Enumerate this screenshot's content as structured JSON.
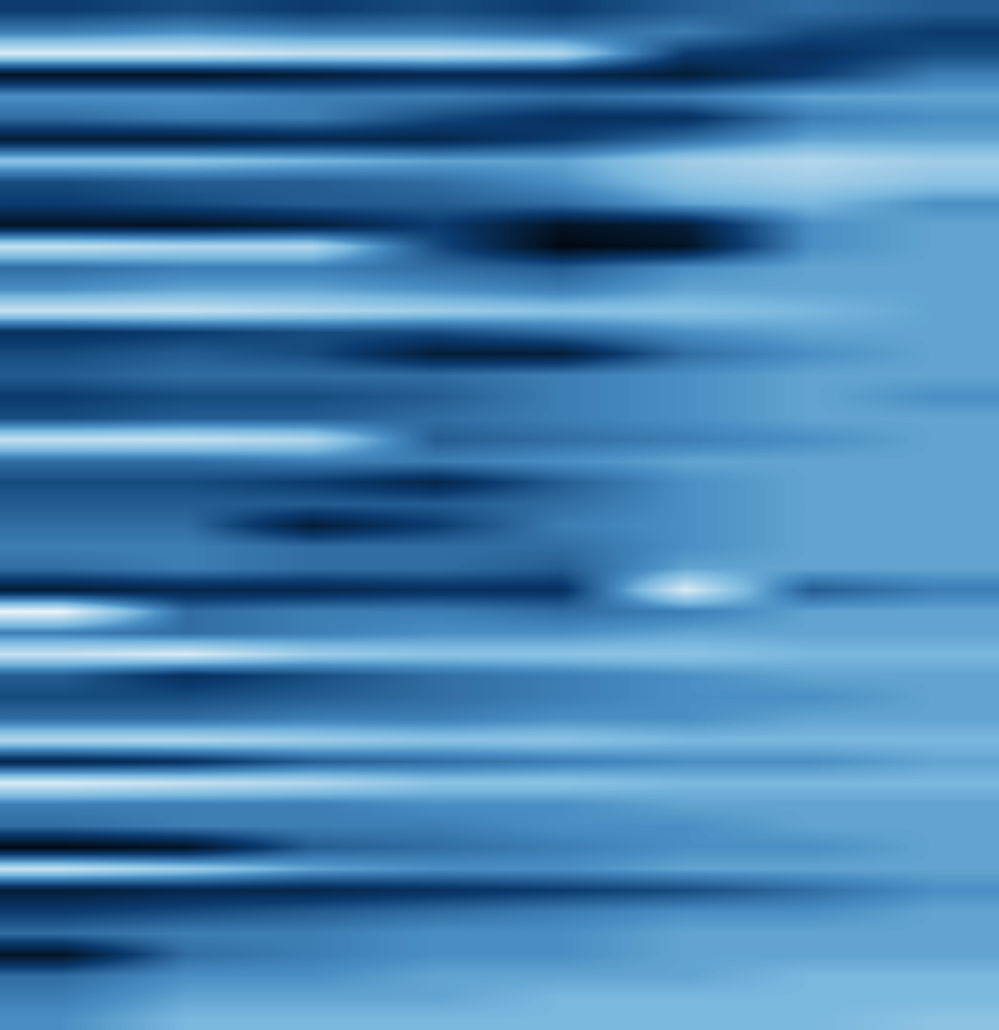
{
  "chart_data": {
    "type": "heatmap",
    "tick_labels": false,
    "color_range": [
      0,
      1
    ],
    "cells": [
      [
        0.3,
        0.35,
        0.3,
        0.35,
        0.3,
        0.4,
        0.45,
        0.4
      ],
      [
        0.5,
        0.55,
        0.5,
        0.5,
        0.45,
        0.5,
        0.35,
        0.3
      ],
      [
        0.9,
        0.9,
        0.85,
        0.85,
        0.8,
        0.3,
        0.25,
        0.35
      ],
      [
        0.1,
        0.1,
        0.15,
        0.2,
        0.2,
        0.15,
        0.3,
        0.5
      ],
      [
        0.55,
        0.55,
        0.5,
        0.5,
        0.45,
        0.5,
        0.6,
        0.6
      ],
      [
        0.45,
        0.5,
        0.5,
        0.35,
        0.25,
        0.25,
        0.5,
        0.55
      ],
      [
        0.15,
        0.15,
        0.2,
        0.2,
        0.3,
        0.45,
        0.6,
        0.6
      ],
      [
        0.7,
        0.7,
        0.65,
        0.6,
        0.6,
        0.75,
        0.8,
        0.75
      ],
      [
        0.35,
        0.4,
        0.4,
        0.45,
        0.55,
        0.7,
        0.75,
        0.7
      ],
      [
        0.3,
        0.35,
        0.4,
        0.4,
        0.45,
        0.6,
        0.65,
        0.55
      ],
      [
        0.1,
        0.1,
        0.15,
        0.3,
        0.1,
        0.15,
        0.55,
        0.6
      ],
      [
        0.85,
        0.8,
        0.8,
        0.35,
        0.05,
        0.1,
        0.55,
        0.6
      ],
      [
        0.45,
        0.5,
        0.5,
        0.45,
        0.4,
        0.55,
        0.6,
        0.6
      ],
      [
        0.55,
        0.6,
        0.6,
        0.55,
        0.5,
        0.6,
        0.6,
        0.6
      ],
      [
        0.85,
        0.85,
        0.8,
        0.75,
        0.7,
        0.7,
        0.65,
        0.6
      ],
      [
        0.25,
        0.3,
        0.35,
        0.35,
        0.45,
        0.55,
        0.6,
        0.6
      ],
      [
        0.35,
        0.4,
        0.35,
        0.15,
        0.15,
        0.45,
        0.55,
        0.6
      ],
      [
        0.4,
        0.45,
        0.45,
        0.45,
        0.5,
        0.55,
        0.6,
        0.6
      ],
      [
        0.3,
        0.35,
        0.35,
        0.4,
        0.5,
        0.55,
        0.6,
        0.55
      ],
      [
        0.35,
        0.4,
        0.4,
        0.45,
        0.5,
        0.55,
        0.6,
        0.6
      ],
      [
        0.85,
        0.85,
        0.8,
        0.4,
        0.45,
        0.5,
        0.55,
        0.6
      ],
      [
        0.45,
        0.45,
        0.5,
        0.5,
        0.55,
        0.6,
        0.6,
        0.6
      ],
      [
        0.35,
        0.35,
        0.3,
        0.2,
        0.4,
        0.55,
        0.6,
        0.6
      ],
      [
        0.4,
        0.4,
        0.4,
        0.4,
        0.45,
        0.55,
        0.6,
        0.6
      ],
      [
        0.45,
        0.45,
        0.15,
        0.3,
        0.5,
        0.55,
        0.6,
        0.6
      ],
      [
        0.5,
        0.5,
        0.45,
        0.45,
        0.45,
        0.55,
        0.6,
        0.6
      ],
      [
        0.45,
        0.5,
        0.45,
        0.45,
        0.4,
        0.6,
        0.6,
        0.6
      ],
      [
        0.15,
        0.2,
        0.2,
        0.25,
        0.25,
        0.9,
        0.4,
        0.5
      ],
      [
        0.95,
        0.45,
        0.5,
        0.5,
        0.45,
        0.5,
        0.6,
        0.6
      ],
      [
        0.5,
        0.45,
        0.5,
        0.55,
        0.55,
        0.6,
        0.6,
        0.6
      ],
      [
        0.85,
        0.9,
        0.75,
        0.7,
        0.7,
        0.7,
        0.65,
        0.65
      ],
      [
        0.4,
        0.25,
        0.35,
        0.45,
        0.5,
        0.55,
        0.6,
        0.6
      ],
      [
        0.35,
        0.35,
        0.4,
        0.45,
        0.5,
        0.55,
        0.55,
        0.6
      ],
      [
        0.45,
        0.45,
        0.5,
        0.5,
        0.55,
        0.55,
        0.6,
        0.6
      ],
      [
        0.8,
        0.8,
        0.75,
        0.7,
        0.7,
        0.65,
        0.65,
        0.65
      ],
      [
        0.2,
        0.25,
        0.4,
        0.45,
        0.5,
        0.55,
        0.55,
        0.6
      ],
      [
        0.9,
        0.85,
        0.8,
        0.7,
        0.7,
        0.65,
        0.65,
        0.65
      ],
      [
        0.5,
        0.5,
        0.5,
        0.55,
        0.55,
        0.6,
        0.6,
        0.6
      ],
      [
        0.45,
        0.5,
        0.5,
        0.5,
        0.55,
        0.55,
        0.6,
        0.6
      ],
      [
        0.05,
        0.1,
        0.4,
        0.45,
        0.5,
        0.55,
        0.55,
        0.6
      ],
      [
        0.85,
        0.75,
        0.6,
        0.55,
        0.55,
        0.6,
        0.6,
        0.6
      ],
      [
        0.15,
        0.2,
        0.2,
        0.25,
        0.3,
        0.35,
        0.45,
        0.55
      ],
      [
        0.3,
        0.35,
        0.4,
        0.45,
        0.5,
        0.55,
        0.55,
        0.6
      ],
      [
        0.45,
        0.5,
        0.5,
        0.55,
        0.55,
        0.6,
        0.6,
        0.6
      ],
      [
        0.1,
        0.45,
        0.5,
        0.55,
        0.55,
        0.6,
        0.6,
        0.6
      ],
      [
        0.45,
        0.55,
        0.55,
        0.6,
        0.6,
        0.6,
        0.65,
        0.65
      ],
      [
        0.5,
        0.6,
        0.6,
        0.6,
        0.65,
        0.65,
        0.65,
        0.65
      ],
      [
        0.55,
        0.65,
        0.65,
        0.65,
        0.65,
        0.65,
        0.65,
        0.7
      ]
    ]
  }
}
